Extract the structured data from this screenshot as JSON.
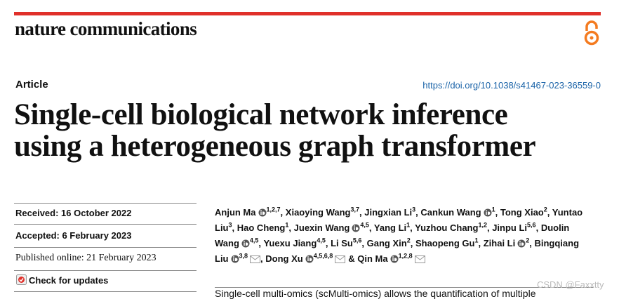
{
  "header": {
    "journal": "nature communications",
    "article_type": "Article",
    "doi": "https://doi.org/10.1038/s41467-023-36559-0"
  },
  "title": {
    "lines": [
      "Single-cell biological network inference",
      "using a heterogeneous graph transformer"
    ]
  },
  "dates": {
    "received": "Received: 16 October 2022",
    "accepted": "Accepted: 6 February 2023",
    "published": "Published online: 21 February 2023"
  },
  "check_updates": "Check for updates",
  "authors": [
    {
      "name": "Anjun Ma",
      "orcid": true,
      "affil": "1,2,7",
      "sep": ","
    },
    {
      "name": "Xiaoying Wang",
      "orcid": false,
      "affil": "3,7",
      "sep": ","
    },
    {
      "name": "Jingxian Li",
      "orcid": false,
      "affil": "3",
      "sep": ","
    },
    {
      "name": "Cankun Wang",
      "orcid": true,
      "affil": "1",
      "sep": ","
    },
    {
      "name": "Tong Xiao",
      "orcid": false,
      "affil": "2",
      "sep": ","
    },
    {
      "name": "Yuntao Liu",
      "orcid": false,
      "affil": "3",
      "sep": ","
    },
    {
      "name": "Hao Cheng",
      "orcid": false,
      "affil": "1",
      "sep": ","
    },
    {
      "name": "Juexin Wang",
      "orcid": true,
      "affil": "4,5",
      "sep": ","
    },
    {
      "name": "Yang Li",
      "orcid": false,
      "affil": "1",
      "sep": ","
    },
    {
      "name": "Yuzhou Chang",
      "orcid": false,
      "affil": "1,2",
      "sep": ","
    },
    {
      "name": "Jinpu Li",
      "orcid": false,
      "affil": "5,6",
      "sep": ","
    },
    {
      "name": "Duolin Wang",
      "orcid": true,
      "affil": "4,5",
      "sep": ","
    },
    {
      "name": "Yuexu Jiang",
      "orcid": false,
      "affil": "4,5",
      "sep": ","
    },
    {
      "name": "Li Su",
      "orcid": false,
      "affil": "5,6",
      "sep": ","
    },
    {
      "name": "Gang Xin",
      "orcid": false,
      "affil": "2",
      "sep": ","
    },
    {
      "name": "Shaopeng Gu",
      "orcid": false,
      "affil": "1",
      "sep": ","
    },
    {
      "name": "Zihai Li",
      "orcid": true,
      "affil": "2",
      "sep": ","
    },
    {
      "name": "Bingqiang Liu",
      "orcid": true,
      "affil": "3,8",
      "mail": true,
      "sep": ","
    },
    {
      "name": "Dong Xu",
      "orcid": true,
      "affil": "4,5,6,8",
      "mail": true,
      "sep": "&"
    },
    {
      "name": "Qin Ma",
      "orcid": true,
      "affil": "1,2,8",
      "mail": true
    }
  ],
  "abstract": "Single-cell multi-omics (scMulti-omics) allows the quantification of multiple",
  "watermark": "CSDN @Faxxtty"
}
